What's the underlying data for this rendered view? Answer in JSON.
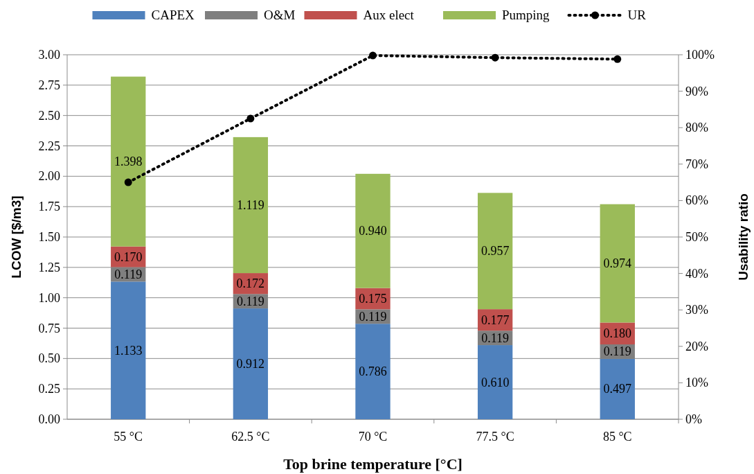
{
  "chart_data": {
    "type": "bar",
    "stacked": true,
    "xlabel": "Top brine temperature [°C]",
    "ylabel": "LCOW [$/m3]",
    "y2label": "Usability ratio",
    "categories": [
      "55 °C",
      "62.5 °C",
      "70 °C",
      "77.5 °C",
      "85 °C"
    ],
    "series": [
      {
        "name": "CAPEX",
        "color": "#4f81bd",
        "values": [
          1.133,
          0.912,
          0.786,
          0.61,
          0.497
        ],
        "value_labels": [
          "1.133",
          "0.912",
          "0.786",
          "0.610",
          "0.497"
        ]
      },
      {
        "name": "O&M",
        "color": "#7f7f7f",
        "values": [
          0.119,
          0.119,
          0.119,
          0.119,
          0.119
        ],
        "value_labels": [
          "0.119",
          "0.119",
          "0.119",
          "0.119",
          "0.119"
        ]
      },
      {
        "name": "Aux elect",
        "color": "#c0504d",
        "values": [
          0.17,
          0.172,
          0.175,
          0.177,
          0.18
        ],
        "value_labels": [
          "0.170",
          "0.172",
          "0.175",
          "0.177",
          "0.180"
        ]
      },
      {
        "name": "Pumping",
        "color": "#9bbb59",
        "values": [
          1.398,
          1.119,
          0.94,
          0.957,
          0.974
        ],
        "value_labels": [
          "1.398",
          "1.119",
          "0.940",
          "0.957",
          "0.974"
        ]
      },
      {
        "name": "UR",
        "type": "line",
        "axis": "y2",
        "color": "#000000",
        "marker": "circle",
        "line_style": "dotted",
        "values": [
          65,
          82.5,
          99.8,
          99.2,
          98.8
        ]
      }
    ],
    "ylim": [
      0,
      3
    ],
    "yticks": [
      {
        "value": 0,
        "label": "0.00"
      },
      {
        "value": 0.25,
        "label": "0.25"
      },
      {
        "value": 0.5,
        "label": "0.50"
      },
      {
        "value": 0.75,
        "label": "0.75"
      },
      {
        "value": 1,
        "label": "1.00"
      },
      {
        "value": 1.25,
        "label": "1.25"
      },
      {
        "value": 1.5,
        "label": "1.50"
      },
      {
        "value": 1.75,
        "label": "1.75"
      },
      {
        "value": 2,
        "label": "2.00"
      },
      {
        "value": 2.25,
        "label": "2.25"
      },
      {
        "value": 2.5,
        "label": "2.50"
      },
      {
        "value": 2.75,
        "label": "2.75"
      },
      {
        "value": 3,
        "label": "3.00"
      }
    ],
    "y2lim": [
      0,
      100
    ],
    "y2ticks": [
      {
        "value": 0,
        "label": "0%"
      },
      {
        "value": 10,
        "label": "10%"
      },
      {
        "value": 20,
        "label": "20%"
      },
      {
        "value": 30,
        "label": "30%"
      },
      {
        "value": 40,
        "label": "40%"
      },
      {
        "value": 50,
        "label": "50%"
      },
      {
        "value": 60,
        "label": "60%"
      },
      {
        "value": 70,
        "label": "70%"
      },
      {
        "value": 80,
        "label": "80%"
      },
      {
        "value": 90,
        "label": "90%"
      },
      {
        "value": 100,
        "label": "100%"
      }
    ],
    "grid": "y",
    "legend": "top"
  }
}
